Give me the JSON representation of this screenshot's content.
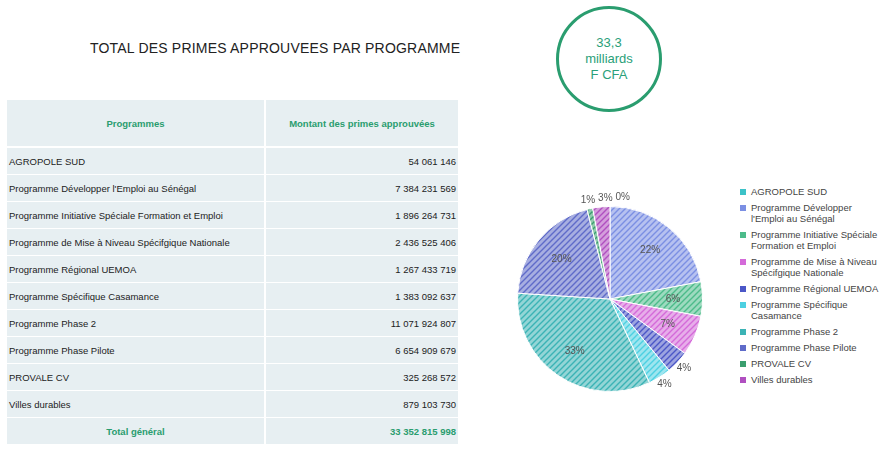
{
  "title": "TOTAL DES PRIMES APPROUVEES PAR PROGRAMME",
  "badge": [
    "33,3",
    "milliards",
    "F CFA"
  ],
  "table": {
    "header": [
      "Programmes",
      "Montant des primes approuvées"
    ],
    "rows": [
      [
        "AGROPOLE SUD",
        "54 061 146"
      ],
      [
        "Programme Développer l'Emploi au Sénégal",
        "7 384 231 569"
      ],
      [
        "Programme Initiative Spéciale Formation et Emploi",
        "1 896 264 731"
      ],
      [
        "Programme de Mise à Niveau Spécifgique Nationale",
        "2 436 525 406"
      ],
      [
        "Programme Régional UEMOA",
        "1 267 433 719"
      ],
      [
        "Programme Spécifique Casamance",
        "1 383 092 637"
      ],
      [
        "Programme Phase 2",
        "11 071 924 807"
      ],
      [
        "Programme Phase Pilote",
        "6 654 909 679"
      ],
      [
        "PROVALE CV",
        "325 268 572"
      ],
      [
        "Villes durables",
        "879 103 730"
      ]
    ],
    "total": [
      "Total général",
      "33 352 815 998"
    ]
  },
  "chart_data": {
    "type": "pie",
    "categories": [
      "AGROPOLE SUD",
      "Programme Développer l'Emploi au Sénégal",
      "Programme Initiative Spéciale Formation et Emploi",
      "Programme de Mise à Niveau Spécifgique Nationale",
      "Programme Régional UEMOA",
      "Programme Spécifique Casamance",
      "Programme Phase 2",
      "Programme Phase Pilote",
      "PROVALE CV",
      "Villes durables"
    ],
    "values": [
      0,
      22,
      6,
      7,
      4,
      4,
      33,
      20,
      1,
      3
    ],
    "value_labels": [
      "0%",
      "22%",
      "6%",
      "7%",
      "4%",
      "4%",
      "33%",
      "20%",
      "1%",
      "3%"
    ],
    "colors": [
      "#3cc2c8",
      "#7b8fe3",
      "#4cbb8a",
      "#d46ad9",
      "#4b57c7",
      "#4dd0e1",
      "#3bb3b5",
      "#5f6bc9",
      "#3a9e6e",
      "#b04fc0"
    ],
    "data_labels": true,
    "legend": "right"
  }
}
